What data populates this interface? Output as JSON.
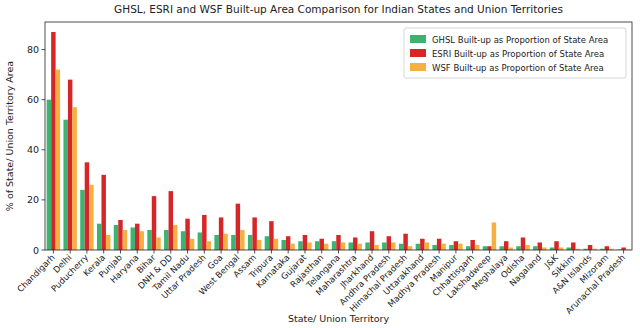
{
  "chart_data": {
    "type": "bar",
    "title": "GHSL, ESRI and WSF Built-up Area Comparison for Indian States and Union Territories",
    "x_label": "State/ Union Territory",
    "y_label": "% of State/ Union Territory Area",
    "categories": [
      "Chandigarh",
      "Delhi",
      "Puducherry",
      "Kerala",
      "Punjab",
      "Haryana",
      "Bihar",
      "DNH & DD",
      "Tamil Nadu",
      "Uttar Pradesh",
      "Goa",
      "West Bengal",
      "Assam",
      "Tripura",
      "Karnataka",
      "Gujarat",
      "Rajasthan",
      "Telangana",
      "Maharashtra",
      "Jharkhand",
      "Andhra Pradesh",
      "Himachal Pradesh",
      "Uttarakhand",
      "Madhya Pradesh",
      "Manipur",
      "Chhattisgarh",
      "Lakshadweep",
      "Meghalaya",
      "Odisha",
      "Nagaland",
      "J&K",
      "Sikkim",
      "A&N Islands",
      "Mizoram",
      "Arunachal Pradesh"
    ],
    "series": [
      {
        "name": "GHSL Built-up as Proportion of State Area",
        "color": "#3cb371",
        "values": [
          60,
          52,
          24,
          10.5,
          10,
          9,
          8,
          8,
          7.5,
          7,
          6,
          6,
          6,
          5.5,
          4,
          3.5,
          3.5,
          3.5,
          3,
          3,
          3,
          2.5,
          2.5,
          2,
          2,
          1.5,
          1.5,
          1.5,
          1.5,
          1.5,
          1,
          1,
          0.5,
          0.5,
          0.2
        ]
      },
      {
        "name": "ESRI Built-up as Proportion of State Area",
        "color": "#d62728",
        "values": [
          87,
          68,
          35,
          30,
          12,
          10.5,
          21.5,
          23.5,
          12.5,
          14,
          13,
          18.5,
          13,
          11.5,
          5.5,
          6,
          4.5,
          6,
          5,
          7.5,
          5.5,
          6.5,
          4.5,
          4.5,
          3.5,
          4,
          1.5,
          3.5,
          5,
          3,
          3.5,
          3,
          2,
          1.5,
          1
        ]
      },
      {
        "name": "WSF Built-up as Proportion of State Area",
        "color": "#f5b041",
        "values": [
          72,
          57,
          26,
          6,
          8,
          7.5,
          5,
          10,
          4.5,
          3.5,
          6.5,
          8,
          4,
          4.5,
          2.5,
          3,
          2.5,
          3,
          2.5,
          2,
          3,
          1.5,
          3,
          2.5,
          2.5,
          2,
          11,
          1,
          2,
          1,
          1,
          0.5,
          0.5,
          0.5,
          0.2
        ]
      }
    ],
    "ylim": [
      0,
      91
    ],
    "yticks": [
      0,
      20,
      40,
      60,
      80
    ],
    "grid": false,
    "legend": "upper right"
  }
}
